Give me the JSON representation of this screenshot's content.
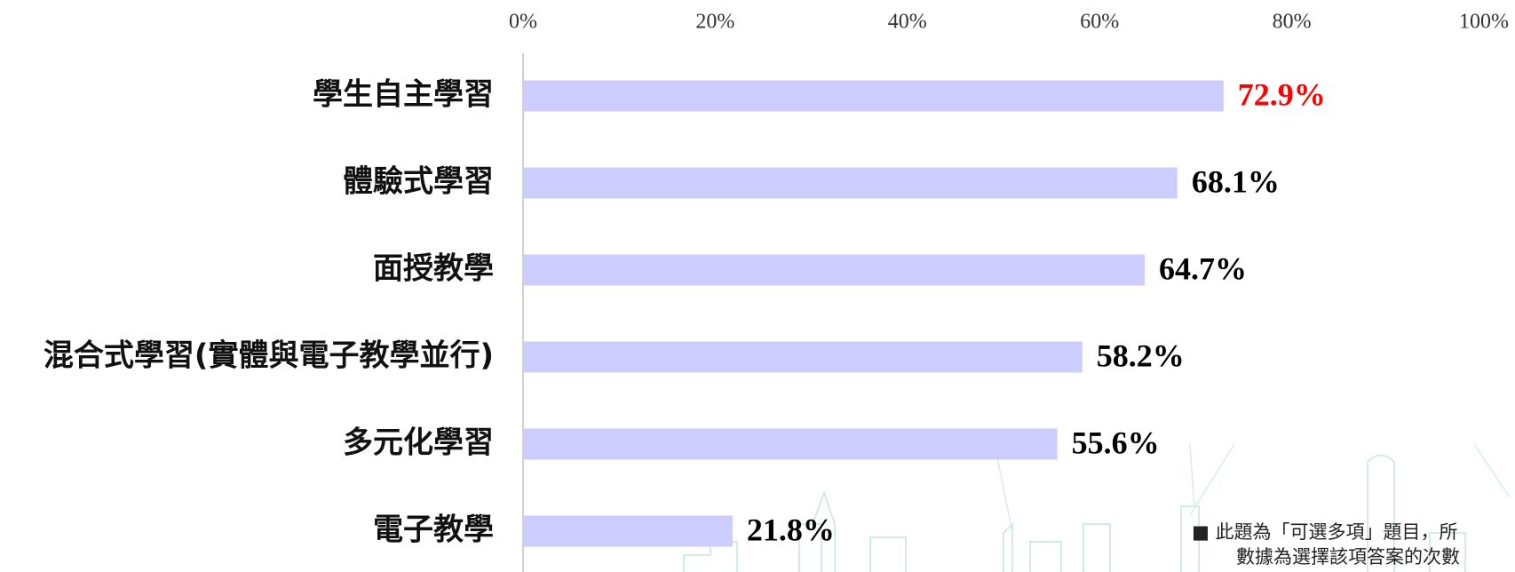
{
  "chart_data": {
    "type": "bar",
    "orientation": "horizontal",
    "categories": [
      "學生自主學習",
      "體驗式學習",
      "面授教學",
      "混合式學習(實體與電子教學並行)",
      "多元化學習",
      "電子教學"
    ],
    "values": [
      72.9,
      68.1,
      64.7,
      58.2,
      55.6,
      21.8
    ],
    "value_labels": [
      "72.9%",
      "68.1%",
      "64.7%",
      "58.2%",
      "55.6%",
      "21.8%"
    ],
    "value_label_colors": [
      "#ff0000",
      "#000000",
      "#000000",
      "#000000",
      "#000000",
      "#000000"
    ],
    "color": "#ccccff",
    "xlim": [
      0,
      100
    ],
    "xticks": [
      {
        "value": 0,
        "label": "0%"
      },
      {
        "value": 20,
        "label": "20%"
      },
      {
        "value": 40,
        "label": "40%"
      },
      {
        "value": 60,
        "label": "60%"
      },
      {
        "value": 80,
        "label": "80%"
      },
      {
        "value": 100,
        "label": "100%"
      }
    ],
    "grid": false
  },
  "note": [
    "■ 此題為「可選多項」題目，所",
    "數據為選擇該項答案的次數"
  ]
}
